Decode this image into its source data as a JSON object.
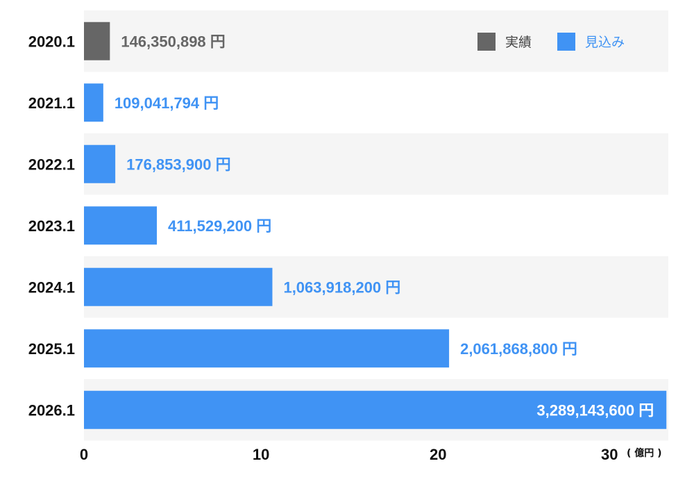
{
  "colors": {
    "actual": "#666666",
    "forecast": "#4093f4",
    "band": "#f5f5f5",
    "value_on_bar": "#ffffff"
  },
  "chart_data": {
    "type": "bar",
    "orientation": "horizontal",
    "categories": [
      "2020.1",
      "2021.1",
      "2022.1",
      "2023.1",
      "2024.1",
      "2025.1",
      "2026.1"
    ],
    "values": [
      146350898,
      109041794,
      176853900,
      411529200,
      1063918200,
      2061868800,
      3289143600
    ],
    "value_labels": [
      "146,350,898 円",
      "109,041,794 円",
      "176,853,900 円",
      "411,529,200 円",
      "1,063,918,200 円",
      "2,061,868,800 円",
      "3,289,143,600 円"
    ],
    "kinds": [
      "actual",
      "forecast",
      "forecast",
      "forecast",
      "forecast",
      "forecast",
      "forecast"
    ],
    "series": [
      {
        "name": "実績",
        "key": "actual"
      },
      {
        "name": "見込み",
        "key": "forecast"
      }
    ],
    "xlim": [
      0,
      3300000000
    ],
    "ticks": [
      {
        "value": 0,
        "label": "0"
      },
      {
        "value": 1000000000,
        "label": "10"
      },
      {
        "value": 2000000000,
        "label": "20"
      },
      {
        "value": 3000000000,
        "label": "30"
      }
    ],
    "unit_label": "( 億円 )",
    "legend_position": "top-right",
    "grid": false
  }
}
